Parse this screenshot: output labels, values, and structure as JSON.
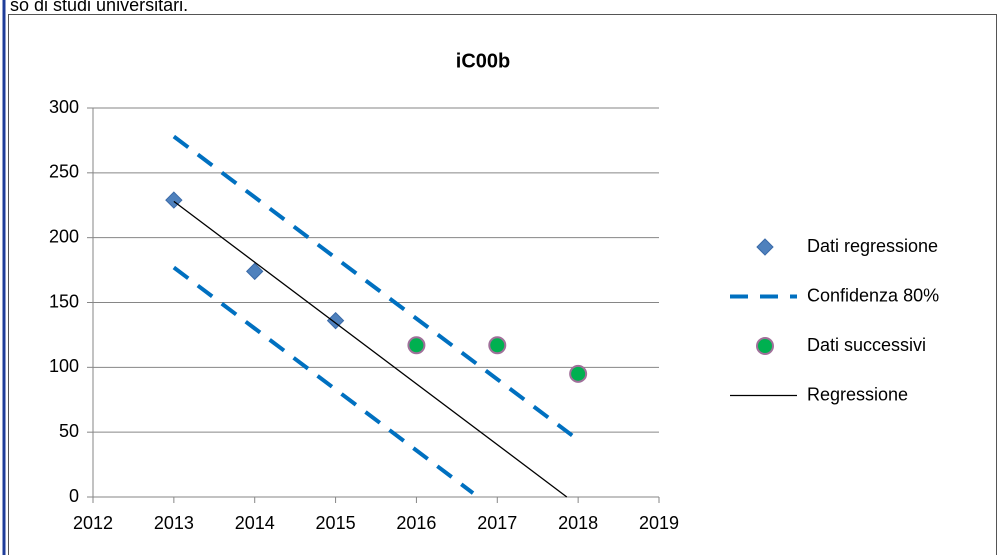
{
  "header_text": "so di studi universitari.",
  "chart_data": {
    "type": "scatter",
    "title": "iC00b",
    "xlim": [
      2012,
      2019
    ],
    "xticks": [
      2012,
      2013,
      2014,
      2015,
      2016,
      2017,
      2018,
      2019
    ],
    "ylim": [
      0,
      300
    ],
    "yticks": [
      0,
      50,
      100,
      150,
      200,
      250,
      300
    ],
    "grid": true,
    "legend": "right",
    "series": [
      {
        "name": "Dati regressione",
        "color": "#4f81bd",
        "marker": "diamond",
        "x": [
          2013,
          2014,
          2015
        ],
        "values": [
          229,
          174,
          136
        ]
      },
      {
        "name": "Confidenza 80%",
        "color": "#0070c0",
        "line_style": "dashed",
        "x": [
          2013,
          2018,
          null,
          2013,
          2016.7
        ],
        "values": [
          278,
          44,
          null,
          177,
          3
        ]
      },
      {
        "name": "Dati successivi",
        "color": "#00b050",
        "marker": "circle",
        "x": [
          2016,
          2017,
          2018
        ],
        "values": [
          117,
          117,
          95
        ]
      },
      {
        "name": "Regressione",
        "color": "#000000",
        "line_style": "solid",
        "x": [
          2013,
          2017.86
        ],
        "values": [
          228,
          0
        ]
      }
    ]
  }
}
